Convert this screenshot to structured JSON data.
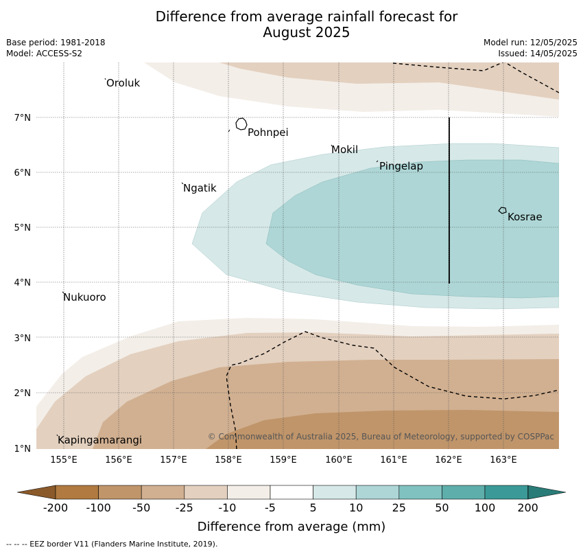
{
  "title_line1": "Difference from average rainfall forecast for",
  "title_line2": "August 2025",
  "meta": {
    "base_period": "Base period: 1981-2018",
    "model": "Model: ACCESS-S2",
    "model_run": "Model run: 12/05/2025",
    "issued": "Issued: 14/05/2025"
  },
  "map": {
    "lat_labels": [
      "7°N",
      "6°N",
      "5°N",
      "4°N",
      "3°N",
      "2°N",
      "1°N"
    ],
    "lon_labels": [
      "155°E",
      "156°E",
      "157°E",
      "158°E",
      "159°E",
      "160°E",
      "161°E",
      "162°E",
      "163°E"
    ],
    "place_labels": [
      "Oroluk",
      "Pohnpei",
      "Mokil",
      "Pingelap",
      "Ngatik",
      "Kosrae",
      "Nukuoro",
      "Kapingamarangi"
    ],
    "copyright": "© Commonwealth of Australia 2025, Bureau of Meteorology, supported by COSPPac"
  },
  "legend": {
    "tick_labels": [
      "-200",
      "-100",
      "-50",
      "-25",
      "-10",
      "-5",
      "5",
      "10",
      "25",
      "50",
      "100",
      "200"
    ],
    "bin_colors": [
      "#b07a40",
      "#c0956a",
      "#d1b091",
      "#e3d0bf",
      "#f3eee8",
      "#ffffff",
      "#d6e8e8",
      "#aed6d6",
      "#80c2c0",
      "#5eaeab",
      "#3b9a97"
    ],
    "low_color": "#8b5a2b",
    "high_color": "#2a7c78",
    "label": "Difference from average (mm)"
  },
  "footer": "--  --  -- EEZ border V11 (Flanders Marine Institute, 2019)."
}
